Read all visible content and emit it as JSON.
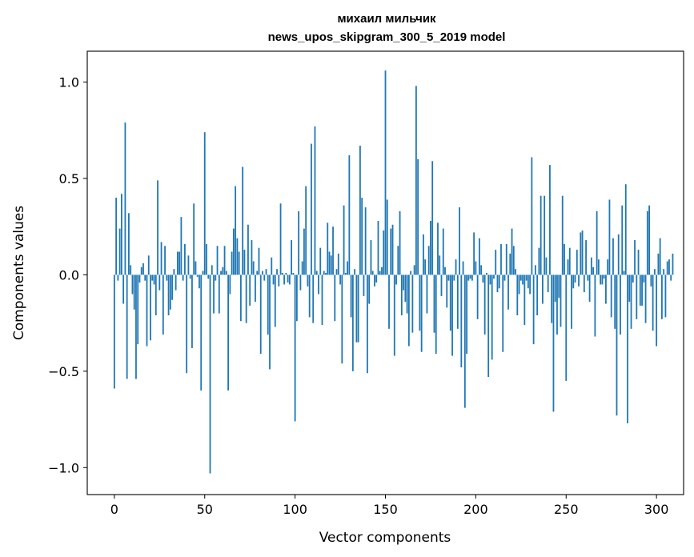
{
  "chart_data": {
    "type": "bar",
    "title": "михаил мильчик",
    "subtitle": "news_upos_skipgram_300_5_2019 model",
    "xlabel": "Vector components",
    "ylabel": "Components values",
    "xlim": [
      -15,
      315
    ],
    "ylim": [
      -1.14,
      1.16
    ],
    "xticks": [
      0,
      50,
      100,
      150,
      200,
      250,
      300
    ],
    "xtick_labels": [
      "0",
      "50",
      "100",
      "150",
      "200",
      "250",
      "300"
    ],
    "yticks": [
      -1.0,
      -0.5,
      0.0,
      0.5,
      1.0
    ],
    "ytick_labels": [
      "−1.0",
      "−0.5",
      "0.0",
      "0.5",
      "1.0"
    ],
    "grid": false,
    "bar_color": "#1f77b4",
    "x_start": 0,
    "values": [
      -0.59,
      0.4,
      -0.03,
      0.24,
      0.42,
      -0.15,
      0.79,
      -0.54,
      0.32,
      0.05,
      -0.1,
      -0.18,
      -0.54,
      -0.36,
      -0.04,
      0.04,
      0.06,
      -0.03,
      -0.37,
      0.1,
      -0.34,
      -0.03,
      -0.05,
      -0.21,
      0.49,
      -0.08,
      0.17,
      -0.31,
      0.15,
      -0.03,
      -0.21,
      -0.18,
      -0.13,
      0.03,
      -0.08,
      0.12,
      0.12,
      0.3,
      -0.03,
      0.16,
      -0.51,
      0.1,
      -0.02,
      -0.38,
      0.37,
      0.07,
      -0.01,
      -0.07,
      -0.6,
      0.02,
      0.74,
      0.16,
      -0.02,
      -1.03,
      0.05,
      -0.2,
      -0.03,
      0.15,
      -0.2,
      0.02,
      0.04,
      0.15,
      0.02,
      -0.6,
      -0.1,
      0.12,
      0.24,
      0.46,
      0.19,
      0.12,
      -0.24,
      0.56,
      0.13,
      -0.25,
      0.26,
      -0.16,
      0.18,
      0.07,
      -0.14,
      0.02,
      0.14,
      -0.41,
      0.02,
      -0.03,
      0.03,
      -0.31,
      -0.49,
      0.09,
      -0.05,
      -0.27,
      0.03,
      -0.06,
      0.37,
      0.01,
      -0.05,
      0.01,
      -0.04,
      -0.05,
      0.18,
      0.01,
      -0.76,
      -0.24,
      0.33,
      -0.08,
      0.07,
      0.24,
      0.46,
      -0.06,
      -0.22,
      0.68,
      -0.25,
      0.77,
      0.02,
      -0.1,
      0.14,
      -0.26,
      0.02,
      0.01,
      0.27,
      0.12,
      0.1,
      0.25,
      -0.24,
      0.03,
      0.11,
      -0.05,
      -0.46,
      0.36,
      0.01,
      0.07,
      0.62,
      -0.22,
      -0.5,
      0.03,
      -0.35,
      -0.35,
      0.67,
      0.4,
      -0.11,
      0.35,
      -0.51,
      -0.15,
      0.18,
      0.02,
      -0.06,
      -0.04,
      0.28,
      0.02,
      0.04,
      0.23,
      1.06,
      0.39,
      -0.28,
      0.24,
      0.26,
      -0.42,
      -0.05,
      0.15,
      0.33,
      -0.21,
      -0.08,
      -0.14,
      -0.2,
      -0.37,
      0.02,
      -0.3,
      0.05,
      0.98,
      0.6,
      -0.29,
      -0.4,
      0.21,
      0.08,
      -0.2,
      0.15,
      0.28,
      0.59,
      -0.3,
      -0.41,
      0.27,
      0.1,
      -0.11,
      0.24,
      0.04,
      -0.17,
      -0.03,
      -0.29,
      -0.42,
      -0.03,
      0.08,
      -0.28,
      0.35,
      -0.48,
      0.07,
      -0.69,
      -0.41,
      -0.03,
      -0.02,
      -0.03,
      0.22,
      0.07,
      -0.23,
      0.19,
      0.05,
      -0.04,
      -0.31,
      0.01,
      -0.53,
      -0.05,
      -0.44,
      -0.02,
      0.13,
      -0.09,
      -0.07,
      0.16,
      -0.4,
      -0.03,
      0.16,
      -0.18,
      0.11,
      0.24,
      0.15,
      0.03,
      -0.21,
      -0.1,
      -0.03,
      -0.05,
      -0.26,
      -0.03,
      -0.07,
      -0.1,
      0.61,
      -0.36,
      0.05,
      -0.21,
      0.14,
      0.41,
      -0.15,
      0.41,
      0.09,
      -0.09,
      0.57,
      -0.25,
      -0.71,
      -0.14,
      -0.31,
      -0.12,
      -0.27,
      0.41,
      0.16,
      -0.55,
      0.08,
      0.14,
      -0.28,
      -0.07,
      -0.04,
      0.13,
      -0.06,
      0.22,
      0.23,
      -0.09,
      0.18,
      -0.03,
      -0.14,
      0.09,
      0.04,
      -0.32,
      0.33,
      0.08,
      -0.05,
      -0.05,
      -0.02,
      -0.15,
      0.08,
      0.39,
      -0.22,
      0.19,
      -0.28,
      -0.73,
      0.21,
      -0.31,
      0.36,
      0.02,
      0.47,
      -0.77,
      -0.14,
      -0.28,
      -0.04,
      0.18,
      -0.23,
      0.13,
      -0.16,
      -0.16,
      -0.04,
      -0.25,
      0.33,
      0.36,
      -0.06,
      -0.29,
      0.03,
      -0.37,
      0.11,
      0.19,
      -0.23,
      0.03,
      -0.22,
      0.07,
      0.08,
      -0.03,
      0.11
    ]
  }
}
